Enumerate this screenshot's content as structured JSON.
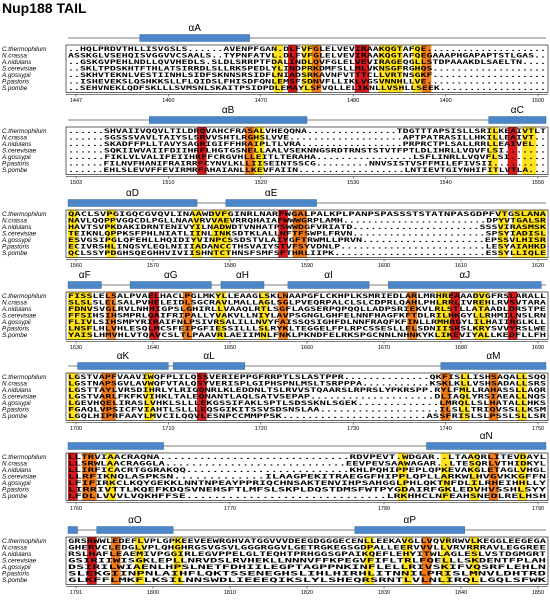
{
  "title": "Nup188 TAIL",
  "species": [
    "C.thermophilum",
    "N.crassa",
    "A.nidulans",
    "S.cerevisiae",
    "A.gossypii",
    "P.pastoris",
    "S.pombe"
  ],
  "blocks": [
    {
      "helices": [
        "αA"
      ],
      "ruler": [
        1447,
        1460,
        1470,
        1480,
        1490,
        1500
      ],
      "sequences": [
        "..HQLPRDVTHLLISVGSLS......AVENPFGAN.DLFVFGLELVEVIRAAKQGTAFQE....................",
        "ASSKGLVSEHQISVGGVVCSAALS..TYPNFATVL.DLFVFGLELVEVIRAAKQGTAFQEGAAAPHGAPAPTSTLGAS..",
        "..GSKGVPEHLNDLLQVVHEDLS.SLDLSRRPTFDALINDLQVFGLELVEVIRAGEQGLLSTDPAAAKDLSAELTN....",
        "..SKLTPDSKHTFTHLATSIRRDLSLLRKSPEDLYLINDPRKDMFSLLMLVKNSGFRGHQS...................",
        "..SKHVTEKNLVESTIINHLSIDFSKNNSRSIDFLNIADSRKAVNFVTTTCLLVRTNSGKF...................",
        "..ISHEVEKSLQSHKKSLLFLQIDSLFHISDFQNLEMSFSDNVFLLIKLVGSVNNHLLVE....................",
        "..SEHVNEKLQDFSKLLLSVMSNLSKAITPSIDPDLEMAYLSFVQLLELIKNLLVSHLLSEEK.................."
      ]
    },
    {
      "helices": [
        "αB",
        "αC"
      ],
      "ruler": [
        1503,
        1510,
        1520,
        1530,
        1540,
        1550
      ],
      "sequences": [
        "......SHVAIIVQQVLTILDRQVAHCFRASALVHEQQNA...............TDGTTTAPSISLLSRILKEAIVTLT",
        "......SGSSSVAVLTAIYSLSRVVSHTLRGHSLVVE...................APTPATRASILLHKILLEAIVT..",
        "......SKADFFPLLTAVYSAGRIGIFFHRAIPLTLVRA.................PRPRCTPLSALLRRLLEAIVEL..",
        "......SQKIIWVAIIFDIIHRFLHGTGSNELLAALVSEKNNGSRDTRNSTSTVTFPTLDLIHRLLVQVFLSI.......",
        "......FIKLVLVALIFEIIHRFFCRGVHLLEITLTERAHA................LSFLINRLLVQVFLSI......",
        "......FILNVFHANIFRAIRRFCYNVLKLLIISEINTSSCG.........NNVSISTVSFFMILEFIVSII.........",
        "......EHLSLEVVFFEVIRMRFAHAIANLLKEVFAIIN..................LNTIEVTGIYNHIFITLVTLA..."
      ]
    },
    {
      "helices": [
        "αD",
        "αE"
      ],
      "ruler": [
        1560,
        1570,
        1580,
        1590,
        1600,
        1610,
        1620
      ],
      "sequences": [
        "QACLSVPGIGQCGVQVLINAAWDVFGINRLNARFWGALPALKPLPANPSPASSSTSTATNPASGDPFVTGSLANA",
        "NAVLQQPPVGQCDLPGLLNAAVRVVAEVRRQHAIAFWWWGRPLAMH........................DPYVTGALSR",
        "HAVTSVPKDAKIDRNTENIVYILNADWDTVNHATPSWWDGFVRIATD.....................SSSVIRASMSK",
        "TEIKNLQPPKSFPHLNIATLIINLINKSDTKLALLNFTFSWPLFRVN......................SPSYIADISL",
        "ESVGSIPGLQFEHLLHQIDIYVINPCSSDSTVLAIYGFTRWMLLPRVN....................EPSSVLHISR",
        "ECIVRSHLINQSYLEQLNIIIADANCCTHSVAIYSTVFSYVDNLP........................LESYAIAHKD",
        "QCLSSYPDGHSQEGHHVIVIISHNTCTHNSFSMFSFTHRLIIPK.........................ESSYLLIQLE"
      ]
    },
    {
      "helices": [
        "αF",
        "αG",
        "αH",
        "αI",
        "αJ"
      ],
      "ruler": [
        1630,
        1640,
        1650,
        1660,
        1670,
        1680,
        1690
      ],
      "sequences": [
        "FISSLELSALPVAELHACLPGLMKYLLEAAGLSKLNAAPGFLCKHPLKSMRIEDLARLMRHREAAADVGFRSLARALL",
        "SLSLSLELSALPVHELEIDLSGCRAVLMALLAGLSGLPVEQRPALCLSLCDPRLQAHLPHLRRLIVREHLRVSVTARA",
        "FDNVSVGLRVLNHHIGPSLGHIRLLVAAQLRTLSGFLAGSERPQPQQLLADPSRIEKVLRLSTLLATAADLDRSTPE",
        "FFSIHSIHSMPRLQAIFRIPALLYVAKVLLNIYLAVPSGNGLGHFELNNFHAGFKFTDLRILHKGYLLRHMILNSLRN",
        "FLIVLSIHSMPYRIRAIFNLPSIVRSALILLNVYFAISSQSIGHFDLNNFRAQFKFINLLRMHRGYLILHAIIRGLKLL",
        "LNSFLHLVHLESQLMCSFEIPGFIESSILLLSLRYKLTEGGELFPLRPCSSESLLELSDNIISRSLKRYSVVYRSLWE",
        "YAISLHMVHLVTQAVCSLTLPAAVRLAEIIMNLFNKLPKNDFELRKSPGCNNLNHNKYKLIKEVIYALLKEDFLLFH"
      ]
    },
    {
      "helices": [
        "αK",
        "αL",
        "αM"
      ],
      "ruler": [
        1700,
        1710,
        1720,
        1730,
        1740,
        1750
      ],
      "sequences": [
        "LGSTVAPFVAAVIWQFPLILQSSVERIEPPGFRRPTLSLASTPPR..............QKFISLLISHSAQALLSQQ",
        "LGSTNAPSGVLAVWQFVTALQSYVERISPLGIPHSPNLMSLTSRPPPA...........KSKLKLLVSHSADALLSRS",
        "LGSTTAYLVRSDIHRLYLRIGQNRLKLEDDNLTSLRVVSTQAARSLRPRSLYPKRSPP.RYLFMLLRAHASSLLAQR",
        "LGSTVARLFKFKVIHKLTALEQNANTLAQLSATVSEPAP....................DLIAQLYRSIAEALLNQS",
        "LGEVHQELIRASLVHKLSLLLEKGSSIFAKLSPTLSDSSKNLSGEK.............LMRQLLSLHATALLHKS",
        "FGAQLVPSICFVIAHTLSLLLEQSGIKITSSVSDSNSLAA...................ILSLLTRIQVSSLLKSM",
        "LGQLHIPRFAAYLMVCILQQVLESNPCCMMPPSK.......................ASSFRISLSLPSSLSLLSR"
      ]
    },
    {
      "helices": [
        "αN"
      ],
      "ruler": [
        1760,
        1770,
        1780,
        1790
      ],
      "sequences": [
        "LLTRVIAACRAQNA.............................RDVPEVT.WDGAR..LTAAQRLITEVDAYL",
        "LLSRWLAACRAGGLA............................EEVPEVSAAWAGAR..LTESQRLVTHIDKYL",
        "LLIRFICACRTGGRAKQQ.........................KHLPQHIPPEPLQPKEVAKGLETAGLVHGL",
        "LLRFIKNQLASPKSN.............ILAAGPEKITRAEGGFHIPPLQPLLARKWLHVGVKKGFFN",
        "LFIFIRKCLKQYGEKKLNNTNPEAYPPRIQCHNSAKTENVIHPSAHGGLPHLQKTNFDLILRHEIHHLLY",
        "LIRRIVTTLKQEFKDQSVNEHSFTLMFSLSKPLDQSTDMSFWTPYGDAIRFGKLEDVHVSSHLSYY",
        "LFDLLVVVLVQKHFFSE.............................LRKHHCLNFEAHSNEDLRELHSH"
      ]
    },
    {
      "helices": [
        "αO",
        "αP"
      ],
      "ruler": [
        1791,
        1800,
        1810,
        1820,
        1830,
        1840,
        1850
      ],
      "sequences": [
        "GRSRWWLEDEFLVPLGPKEEVEEWRGHVATGGVVVDEEGDGGGECENLLEEKAVGLLVQVRRWVLKEGGLEEGEGA",
        "GHERVCLEDGLVPLQHGHRGSVGSVLGGGRGGVLGETRGKEGSGDPALLEERVVVLLVRVRRRAVLEGGREE",
        "RSLHAFLEAEMIVPGGIRLEGVPPELGLTEQHTPRHGGSGPAIKQEFLEHYITWLAGLESLVSTDGMGRT",
        "GSIRIIWISGKLEPLLNRVDSLRVHEKLLNNNVFFKPEGVFIFLTRLFQELLLSKDENTFPLAH",
        "DSIRILWIAENLHPSLNETFDHIILEGPTAGPPNKINFLELLRIVSKIFVQSRFLEHLN",
        "SLEKGIINPNLAIHFLQKTSSENEGHSLIHLHIRHLITNNILPRISLMNVLDHTRD",
        "GLKFFLMKFLKSILNNSWDLIEEEQIKSLYLSHEQRSRNTLVLNLIRQLLGQLSFWK"
      ]
    }
  ]
}
